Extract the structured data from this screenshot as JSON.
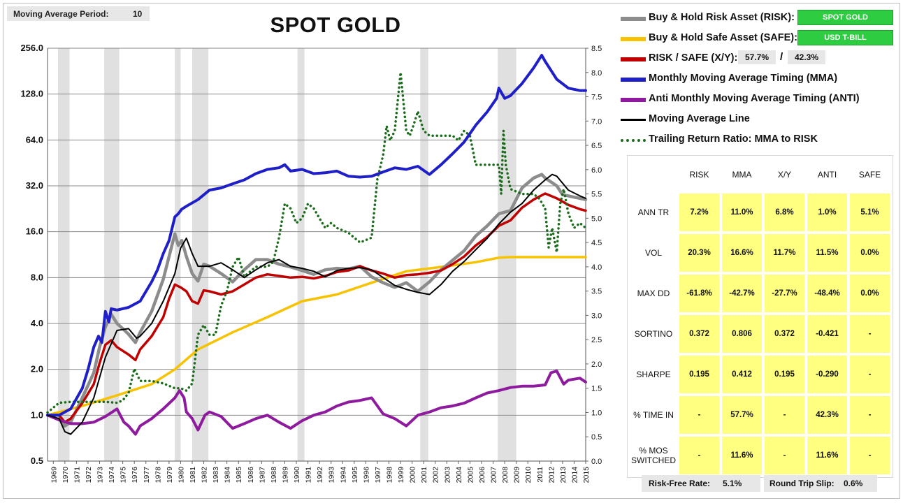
{
  "header": {
    "ma_period_label": "Moving Average Period:",
    "ma_period_value": "10",
    "title": "SPOT GOLD"
  },
  "legend": {
    "risk_label": "Buy & Hold Risk Asset (RISK):",
    "risk_asset": "SPOT GOLD",
    "safe_label": "Buy & Hold Safe Asset (SAFE):",
    "safe_asset": "USD T-BILL",
    "xy_label": "RISK / SAFE (X/Y):",
    "xy_risk_pct": "57.7%",
    "xy_slash": "/",
    "xy_safe_pct": "42.3%",
    "mma_label": "Monthly Moving Average Timing (MMA)",
    "anti_label": "Anti Monthly Moving Average Timing (ANTI)",
    "ma_line_label": "Moving Average Line",
    "trail_label": "Trailing Return Ratio: MMA to RISK"
  },
  "colors": {
    "risk": "#8c8c8c",
    "safe": "#f7c200",
    "xy": "#c00000",
    "mma": "#1f1fc8",
    "anti": "#8e1a9e",
    "ma": "#000000",
    "trail": "#1a6b1a",
    "recession": "#e0e0e0",
    "tag_green": "#2ecc40",
    "cell": "#ffff80"
  },
  "stats": {
    "columns": [
      "RISK",
      "MMA",
      "X/Y",
      "ANTI",
      "SAFE"
    ],
    "rows": [
      {
        "label": "ANN TR",
        "values": [
          "7.2%",
          "11.0%",
          "6.8%",
          "1.0%",
          "5.1%"
        ]
      },
      {
        "label": "VOL",
        "values": [
          "20.3%",
          "16.6%",
          "11.7%",
          "11.5%",
          "0.0%"
        ]
      },
      {
        "label": "MAX DD",
        "values": [
          "-61.8%",
          "-42.7%",
          "-27.7%",
          "-48.4%",
          "0.0%"
        ]
      },
      {
        "label": "SORTINO",
        "values": [
          "0.372",
          "0.806",
          "0.372",
          "-0.421",
          "-"
        ]
      },
      {
        "label": "SHARPE",
        "values": [
          "0.195",
          "0.412",
          "0.195",
          "-0.290",
          "-"
        ]
      },
      {
        "label": "% TIME IN",
        "values": [
          "-",
          "57.7%",
          "-",
          "42.3%",
          "-"
        ]
      },
      {
        "label": "% MOS SWITCHED",
        "values": [
          "-",
          "11.6%",
          "-",
          "11.6%",
          "-"
        ]
      }
    ]
  },
  "footer": {
    "rf_label": "Risk-Free Rate:",
    "rf_value": "5.1%",
    "slip_label": "Round Trip Slip:",
    "slip_value": "0.6%"
  },
  "chart_data": {
    "type": "line",
    "title": "SPOT GOLD",
    "y_scale": "log2",
    "ylim": [
      0.5,
      256
    ],
    "y_ticks": [
      "0.5",
      "1.0",
      "2.0",
      "4.0",
      "8.0",
      "16.0",
      "32.0",
      "64.0",
      "128.0",
      "256.0"
    ],
    "y2lim": [
      0,
      8.5
    ],
    "y2_ticks": [
      "0.0",
      "0.5",
      "1.0",
      "1.5",
      "2.0",
      "2.5",
      "3.0",
      "3.5",
      "4.0",
      "4.5",
      "5.0",
      "5.5",
      "6.0",
      "6.5",
      "7.0",
      "7.5",
      "8.0",
      "8.5"
    ],
    "xlim": [
      1969,
      2015.5
    ],
    "x_ticks": [
      "1969",
      "1970",
      "1971",
      "1972",
      "1973",
      "1974",
      "1975",
      "1976",
      "1977",
      "1978",
      "1979",
      "1980",
      "1981",
      "1982",
      "1983",
      "1984",
      "1985",
      "1986",
      "1987",
      "1988",
      "1989",
      "1990",
      "1991",
      "1992",
      "1993",
      "1994",
      "1995",
      "1996",
      "1997",
      "1998",
      "1999",
      "2000",
      "2001",
      "2002",
      "2003",
      "2004",
      "2005",
      "2006",
      "2007",
      "2008",
      "2009",
      "2010",
      "2011",
      "2012",
      "2013",
      "2014",
      "2015"
    ],
    "recessions": [
      [
        1969.9,
        1970.9
      ],
      [
        1973.9,
        1975.2
      ],
      [
        1980.0,
        1980.5
      ],
      [
        1981.5,
        1982.9
      ],
      [
        1990.6,
        1991.2
      ],
      [
        2001.2,
        2001.9
      ],
      [
        2007.9,
        2009.5
      ]
    ],
    "grid": "horizontal",
    "legend_placement": "right",
    "series": [
      {
        "name": "Buy & Hold Risk Asset (RISK)",
        "key": "risk",
        "axis": "left",
        "width": 4.5,
        "x": [
          1969,
          1970,
          1970.5,
          1971,
          1972,
          1973,
          1973.5,
          1974,
          1974.5,
          1975,
          1975.5,
          1976,
          1976.6,
          1977,
          1978,
          1979,
          1979.5,
          1980,
          1980.3,
          1980.6,
          1981,
          1981.5,
          1982,
          1982.5,
          1983,
          1984,
          1985,
          1986,
          1987,
          1988,
          1989,
          1990,
          1991,
          1992,
          1993,
          1994,
          1995,
          1996,
          1997,
          1998,
          1999,
          2000,
          2001,
          2002,
          2003,
          2004,
          2005,
          2006,
          2007,
          2008,
          2009,
          2010,
          2011,
          2011.7,
          2012,
          2013,
          2013.5,
          2014,
          2015,
          2015.5
        ],
        "y": [
          1.0,
          1.0,
          0.85,
          0.9,
          1.3,
          1.9,
          2.8,
          3.8,
          4.6,
          4.0,
          3.7,
          3.4,
          3.0,
          3.5,
          4.8,
          7.8,
          11.0,
          15.5,
          13.0,
          14.0,
          11.0,
          8.5,
          7.6,
          9.8,
          9.5,
          8.5,
          7.5,
          9.0,
          10.5,
          10.5,
          9.8,
          9.4,
          8.9,
          8.4,
          9.0,
          9.2,
          9.1,
          9.5,
          8.1,
          7.4,
          6.9,
          7.4,
          6.5,
          7.5,
          9.0,
          10.4,
          12.0,
          15.0,
          17.5,
          21.0,
          22.0,
          31.0,
          36.0,
          38.0,
          36.0,
          32.0,
          28.0,
          27.5,
          26.5,
          26.0
        ]
      },
      {
        "name": "Buy & Hold Safe Asset (SAFE)",
        "key": "safe",
        "axis": "left",
        "width": 3.5,
        "x": [
          1969,
          1972,
          1975,
          1978,
          1980,
          1982,
          1985,
          1988,
          1991,
          1994,
          1997,
          2000,
          2003,
          2006,
          2008,
          2009,
          2015.5
        ],
        "y": [
          1.0,
          1.15,
          1.35,
          1.6,
          2.0,
          2.7,
          3.5,
          4.4,
          5.6,
          6.2,
          7.4,
          8.8,
          9.4,
          10.1,
          10.8,
          10.9,
          10.9
        ]
      },
      {
        "name": "RISK / SAFE (X/Y)",
        "key": "xy",
        "axis": "left",
        "width": 3.5,
        "x": [
          1969,
          1970,
          1970.5,
          1971,
          1972,
          1973,
          1973.5,
          1974,
          1974.5,
          1975,
          1976,
          1976.6,
          1977,
          1978,
          1979,
          1979.5,
          1980,
          1980.5,
          1981,
          1981.5,
          1982,
          1982.5,
          1983,
          1984,
          1985,
          1986,
          1987,
          1988,
          1989,
          1990,
          1991,
          1992,
          1993,
          1994,
          1995,
          1996,
          1997,
          1998,
          1999,
          2000,
          2001,
          2002,
          2003,
          2004,
          2005,
          2006,
          2007,
          2008,
          2009,
          2010,
          2011,
          2012,
          2013,
          2014,
          2015,
          2015.5
        ],
        "y": [
          1.0,
          1.0,
          0.9,
          0.95,
          1.2,
          1.6,
          2.2,
          2.9,
          3.1,
          2.8,
          2.5,
          2.3,
          2.7,
          3.3,
          4.4,
          5.8,
          7.2,
          6.9,
          6.5,
          5.6,
          5.4,
          6.6,
          6.5,
          6.2,
          6.5,
          7.2,
          8.0,
          8.4,
          8.2,
          8.0,
          8.1,
          7.9,
          8.2,
          8.7,
          8.9,
          9.5,
          8.9,
          8.5,
          8.0,
          8.3,
          8.4,
          8.6,
          8.9,
          9.8,
          11.0,
          13.0,
          14.8,
          17.5,
          19.0,
          23.0,
          26.0,
          28.5,
          26.5,
          24.0,
          22.5,
          22.0
        ]
      },
      {
        "name": "Monthly Moving Average Timing (MMA)",
        "key": "mma",
        "axis": "left",
        "width": 4,
        "x": [
          1969,
          1970,
          1971,
          1972,
          1972.5,
          1973,
          1973.4,
          1973.7,
          1974,
          1974.3,
          1974.5,
          1975,
          1976,
          1977,
          1978,
          1978.5,
          1979,
          1979.5,
          1980,
          1980.3,
          1980.6,
          1981,
          1982,
          1983,
          1984,
          1985,
          1986,
          1987,
          1988,
          1989,
          1989.5,
          1990,
          1991,
          1992,
          1993,
          1994,
          1995,
          1996,
          1997,
          1998,
          1999,
          2000,
          2001,
          2002,
          2003,
          2004,
          2005,
          2006,
          2007,
          2007.8,
          2008,
          2008.5,
          2009,
          2010,
          2011,
          2011.7,
          2012,
          2013,
          2014,
          2015,
          2015.5
        ],
        "y": [
          1.0,
          1.0,
          1.1,
          1.5,
          2.0,
          2.8,
          3.3,
          3.0,
          4.8,
          4.1,
          5.0,
          4.9,
          5.1,
          5.6,
          7.5,
          9.0,
          11.5,
          14.0,
          20.0,
          21.0,
          22.5,
          23.5,
          26.0,
          30.0,
          31.0,
          33.0,
          35.0,
          38.5,
          41.0,
          42.0,
          44.0,
          40.0,
          41.0,
          38.5,
          39.0,
          40.0,
          37.0,
          36.5,
          37.0,
          39.5,
          42.0,
          41.0,
          43.0,
          38.0,
          44.0,
          52.0,
          62.0,
          80.0,
          98.0,
          120.0,
          140.0,
          120.0,
          125.0,
          150.0,
          190.0,
          230.0,
          210.0,
          160.0,
          140.0,
          135.0,
          135.0
        ]
      },
      {
        "name": "Anti Monthly Moving Average Timing (ANTI)",
        "key": "anti",
        "axis": "left",
        "width": 4,
        "x": [
          1969,
          1970,
          1971,
          1972,
          1973,
          1974,
          1975,
          1975.6,
          1976,
          1976.6,
          1977,
          1978,
          1979,
          1980,
          1980.4,
          1980.8,
          1981,
          1981.5,
          1982,
          1982.6,
          1983,
          1984,
          1985,
          1986,
          1987,
          1988,
          1989,
          1990,
          1991,
          1992,
          1993,
          1994,
          1995,
          1996,
          1997,
          1998,
          1999,
          2000,
          2001,
          2002,
          2003,
          2004,
          2005,
          2006,
          2007,
          2008,
          2009,
          2010,
          2011,
          2012,
          2012.5,
          2013,
          2013.6,
          2014,
          2015,
          2015.5
        ],
        "y": [
          1.0,
          0.93,
          0.88,
          0.88,
          0.9,
          0.98,
          1.1,
          0.9,
          0.85,
          0.75,
          0.85,
          0.95,
          1.1,
          1.3,
          1.45,
          1.3,
          1.05,
          0.95,
          0.8,
          1.0,
          1.05,
          0.98,
          0.82,
          0.88,
          0.95,
          1.0,
          0.9,
          0.82,
          0.92,
          1.0,
          1.05,
          1.15,
          1.22,
          1.25,
          1.3,
          1.02,
          0.95,
          0.85,
          1.0,
          1.05,
          1.12,
          1.15,
          1.2,
          1.3,
          1.4,
          1.45,
          1.52,
          1.55,
          1.55,
          1.58,
          1.9,
          1.95,
          1.6,
          1.7,
          1.75,
          1.65
        ]
      },
      {
        "name": "Moving Average Line",
        "key": "ma",
        "axis": "left",
        "width": 2,
        "x": [
          1969,
          1970,
          1970.5,
          1971,
          1972,
          1973,
          1974,
          1975,
          1976,
          1976.7,
          1977,
          1978,
          1979,
          1980,
          1980.5,
          1981,
          1981.5,
          1982,
          1983,
          1984,
          1985,
          1986,
          1987,
          1988,
          1989,
          1990,
          1991,
          1992,
          1993,
          1994,
          1995,
          1996,
          1997,
          1998,
          1999,
          2000,
          2001,
          2002,
          2003,
          2004,
          2005,
          2006,
          2007,
          2008,
          2009,
          2010,
          2011,
          2012,
          2012.6,
          2013,
          2014,
          2015,
          2015.5
        ],
        "y": [
          1.0,
          0.95,
          0.78,
          0.75,
          0.9,
          1.3,
          2.4,
          3.6,
          3.7,
          3.2,
          3.3,
          4.0,
          5.6,
          8.5,
          12.5,
          14.5,
          11.5,
          9.5,
          9.5,
          10.0,
          9.0,
          8.0,
          9.0,
          10.0,
          10.5,
          9.5,
          9.2,
          8.8,
          8.1,
          8.9,
          9.2,
          9.3,
          9.0,
          8.0,
          7.1,
          6.7,
          6.4,
          6.2,
          7.2,
          8.8,
          10.2,
          12.2,
          14.5,
          18.0,
          21.5,
          24.5,
          30.0,
          35.0,
          38.0,
          37.0,
          30.0,
          27.5,
          26.5
        ]
      },
      {
        "name": "Trailing Return Ratio: MMA to RISK",
        "key": "trail",
        "axis": "right",
        "width": 3.5,
        "dotted": true,
        "x": [
          1969,
          1970,
          1971,
          1972,
          1973,
          1974,
          1975,
          1975.5,
          1976,
          1976.5,
          1977,
          1978,
          1979,
          1980,
          1980.5,
          1981,
          1981.5,
          1982,
          1982.5,
          1983,
          1983.5,
          1984,
          1984.5,
          1985,
          1985.5,
          1986,
          1987,
          1988,
          1988.5,
          1989,
          1989.5,
          1990,
          1990.5,
          1991,
          1991.5,
          1992,
          1992.5,
          1993,
          1993.5,
          1994,
          1995,
          1996,
          1997,
          1997.5,
          1998,
          1998.3,
          1998.6,
          1999,
          1999.5,
          2000,
          2000.3,
          2000.6,
          2001,
          2001.5,
          2002,
          2003,
          2004,
          2004.5,
          2005,
          2005.5,
          2006,
          2007,
          2008,
          2008.2,
          2008.4,
          2008.6,
          2009,
          2010,
          2011,
          2011.5,
          2012,
          2012.3,
          2012.6,
          2013,
          2013.3,
          2013.6,
          2014,
          2014.5,
          2015,
          2015.5
        ],
        "y": [
          1.0,
          1.2,
          1.22,
          1.22,
          1.22,
          1.22,
          1.2,
          1.25,
          1.4,
          1.9,
          1.65,
          1.65,
          1.6,
          1.5,
          1.5,
          1.45,
          1.6,
          2.6,
          2.8,
          2.6,
          2.6,
          3.2,
          3.5,
          4.0,
          4.2,
          3.8,
          4.0,
          4.0,
          4.1,
          4.6,
          5.3,
          5.2,
          4.9,
          5.0,
          5.3,
          5.2,
          5.0,
          4.8,
          4.9,
          4.8,
          4.7,
          4.5,
          4.6,
          5.8,
          6.3,
          6.9,
          6.6,
          6.8,
          8.0,
          6.8,
          6.7,
          6.9,
          7.2,
          6.8,
          6.7,
          6.7,
          6.7,
          6.6,
          6.8,
          6.7,
          6.1,
          6.1,
          6.1,
          5.5,
          6.8,
          6.1,
          5.6,
          5.5,
          5.5,
          5.4,
          5.2,
          4.4,
          4.8,
          4.3,
          5.3,
          5.6,
          5.1,
          4.8,
          4.9,
          4.8
        ]
      }
    ]
  }
}
